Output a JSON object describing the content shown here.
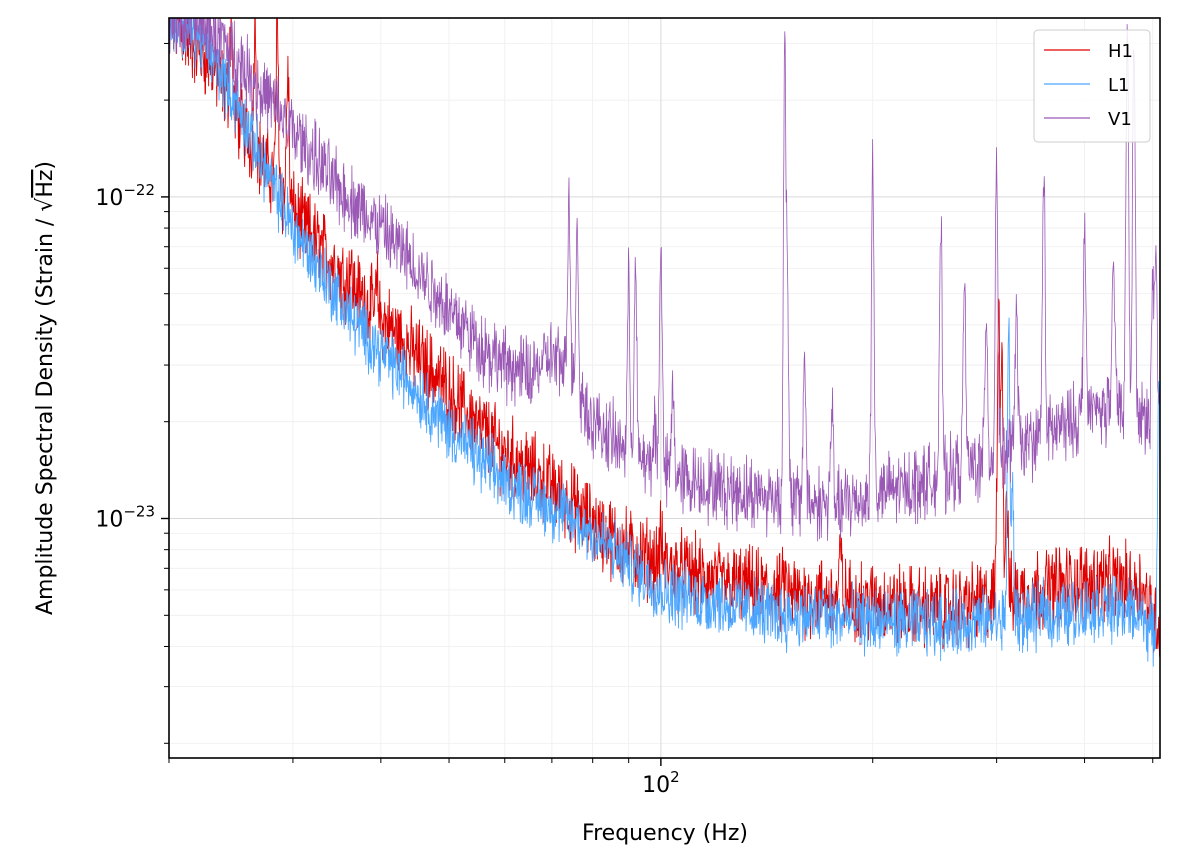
{
  "chart_data": {
    "type": "line",
    "title": "",
    "xlabel": "Frequency (Hz)",
    "ylabel_main": "Amplitude Spectral Density (Strain / ",
    "ylabel_sqrt": "Hz",
    "ylabel_close": ")",
    "xscale": "log",
    "yscale": "log",
    "xlim": [
      20,
      512
    ],
    "ylim": [
      1.8e-24,
      3.6e-22
    ],
    "grid": true,
    "legend_position": "top-right",
    "x_major_ticks": [
      {
        "value": 100,
        "label_base": "10",
        "label_exp": "2"
      }
    ],
    "y_major_ticks": [
      {
        "value": 1e-22,
        "label_base": "10",
        "label_exp": "−22"
      },
      {
        "value": 1e-23,
        "label_base": "10",
        "label_exp": "−23"
      }
    ],
    "series": [
      {
        "name": "H1",
        "color": "#e00000",
        "baseline": [
          [
            20,
            3.6e-22
          ],
          [
            23,
            2.6e-22
          ],
          [
            26,
            1.5e-22
          ],
          [
            30,
            9e-23
          ],
          [
            35,
            5.8e-23
          ],
          [
            40,
            4.2e-23
          ],
          [
            45,
            3.2e-23
          ],
          [
            50,
            2.5e-23
          ],
          [
            55,
            1.9e-23
          ],
          [
            60,
            1.6e-23
          ],
          [
            70,
            1.25e-23
          ],
          [
            80,
            9.5e-24
          ],
          [
            90,
            8e-24
          ],
          [
            100,
            7.2e-24
          ],
          [
            120,
            6.3e-24
          ],
          [
            150,
            5.8e-24
          ],
          [
            200,
            5.5e-24
          ],
          [
            250,
            5.2e-24
          ],
          [
            300,
            5.6e-24
          ],
          [
            350,
            6.1e-24
          ],
          [
            420,
            6.4e-24
          ],
          [
            480,
            6.2e-24
          ],
          [
            512,
            4.5e-24
          ]
        ],
        "peaks": [
          [
            24.5,
            3.6e-22
          ],
          [
            26.5,
            3.6e-22
          ],
          [
            28.5,
            3.4e-22
          ],
          [
            29.5,
            2.5e-22
          ],
          [
            33.5,
            6.3e-23
          ],
          [
            34.8,
            5.6e-23
          ],
          [
            36.2,
            6.2e-23
          ],
          [
            37.8,
            4.8e-23
          ],
          [
            39.5,
            5.2e-23
          ],
          [
            42,
            3.6e-23
          ],
          [
            44.5,
            3e-23
          ],
          [
            46.5,
            2.5e-23
          ],
          [
            49.5,
            2.3e-23
          ],
          [
            52,
            2.2e-23
          ],
          [
            54,
            2.1e-23
          ],
          [
            56,
            1.9e-23
          ],
          [
            60,
            1.6e-23
          ],
          [
            65,
            1.35e-23
          ],
          [
            70,
            1.2e-23
          ],
          [
            75,
            1.1e-23
          ],
          [
            80,
            1e-23
          ],
          [
            100,
            8.6e-24
          ],
          [
            150,
            6.6e-24
          ],
          [
            180,
            7.8e-24
          ],
          [
            300,
            7e-24
          ],
          [
            302,
            4.6e-23
          ],
          [
            305,
            3.8e-23
          ],
          [
            310,
            1.2e-23
          ]
        ]
      },
      {
        "name": "L1",
        "color": "#4ba6ff",
        "baseline": [
          [
            20,
            3.6e-22
          ],
          [
            22,
            3.2e-22
          ],
          [
            24,
            2.3e-22
          ],
          [
            26,
            1.6e-22
          ],
          [
            28,
            1.1e-22
          ],
          [
            30,
            8e-23
          ],
          [
            33,
            5.8e-23
          ],
          [
            36,
            4.3e-23
          ],
          [
            40,
            3.3e-23
          ],
          [
            45,
            2.5e-23
          ],
          [
            50,
            1.9e-23
          ],
          [
            55,
            1.55e-23
          ],
          [
            60,
            1.3e-23
          ],
          [
            70,
            1.08e-23
          ],
          [
            80,
            9e-24
          ],
          [
            90,
            7.2e-24
          ],
          [
            100,
            6e-24
          ],
          [
            120,
            5.4e-24
          ],
          [
            150,
            5e-24
          ],
          [
            200,
            4.8e-24
          ],
          [
            250,
            4.7e-24
          ],
          [
            300,
            4.8e-24
          ],
          [
            350,
            4.9e-24
          ],
          [
            420,
            5.3e-24
          ],
          [
            480,
            5.1e-24
          ],
          [
            512,
            4e-24
          ]
        ],
        "peaks": [
          [
            60,
            9e-24
          ],
          [
            62,
            8e-24
          ],
          [
            75,
            6.2e-24
          ],
          [
            120,
            6e-24
          ],
          [
            170,
            5.5e-24
          ],
          [
            312,
            4.2e-23
          ],
          [
            316,
            1.2e-23
          ],
          [
            350,
            6e-24
          ],
          [
            510,
            2.8e-23
          ]
        ]
      },
      {
        "name": "V1",
        "color": "#9b59b6",
        "baseline": [
          [
            20,
            3.6e-22
          ],
          [
            23,
            3.4e-22
          ],
          [
            26,
            2.4e-22
          ],
          [
            30,
            1.6e-22
          ],
          [
            35,
            1.05e-22
          ],
          [
            40,
            8e-23
          ],
          [
            45,
            6e-23
          ],
          [
            50,
            4.5e-23
          ],
          [
            55,
            3.5e-23
          ],
          [
            60,
            3e-23
          ],
          [
            65,
            2.8e-23
          ],
          [
            70,
            3.2e-23
          ],
          [
            75,
            2.7e-23
          ],
          [
            80,
            2e-23
          ],
          [
            90,
            1.6e-23
          ],
          [
            100,
            1.4e-23
          ],
          [
            120,
            1.25e-23
          ],
          [
            150,
            1.15e-23
          ],
          [
            180,
            1.1e-23
          ],
          [
            200,
            1.18e-23
          ],
          [
            250,
            1.35e-23
          ],
          [
            300,
            1.55e-23
          ],
          [
            350,
            1.8e-23
          ],
          [
            400,
            2.1e-23
          ],
          [
            450,
            2.3e-23
          ],
          [
            490,
            2e-23
          ],
          [
            512,
            2e-23
          ]
        ],
        "peaks": [
          [
            74,
            1.1e-22
          ],
          [
            76,
            8.5e-23
          ],
          [
            90,
            5.3e-23
          ],
          [
            92,
            6e-23
          ],
          [
            98,
            2.1e-23
          ],
          [
            100,
            8e-23
          ],
          [
            104,
            2.6e-23
          ],
          [
            150,
            3.6e-22
          ],
          [
            151,
            8.8e-23
          ],
          [
            160,
            3.4e-23
          ],
          [
            175,
            2.2e-23
          ],
          [
            200,
            1.35e-22
          ],
          [
            250,
            8e-23
          ],
          [
            270,
            5.5e-23
          ],
          [
            290,
            4.5e-23
          ],
          [
            300,
            1.4e-22
          ],
          [
            320,
            4.6e-23
          ],
          [
            350,
            1.3e-22
          ],
          [
            400,
            8.5e-23
          ],
          [
            440,
            6e-23
          ],
          [
            460,
            3.6e-22
          ],
          [
            470,
            3.6e-22
          ],
          [
            500,
            5.5e-23
          ],
          [
            505,
            6.5e-23
          ]
        ]
      }
    ]
  }
}
